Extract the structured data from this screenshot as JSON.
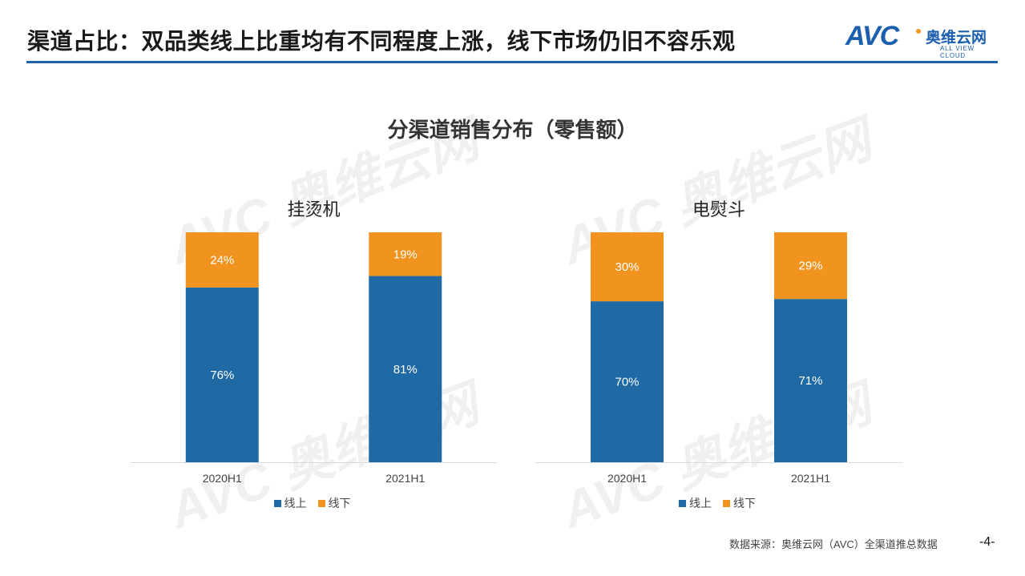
{
  "header": {
    "title": "渠道占比：双品类线上比重均有不同程度上涨，线下市场仍旧不容乐观"
  },
  "logo": {
    "mark": "AVC",
    "cn": "奥维云网",
    "en": "ALL VIEW CLOUD"
  },
  "watermark": "AVC 奥维云网 ALL VIEW CLOUD",
  "subtitle": "分渠道销售分布（零售额）",
  "colors": {
    "online": "#1f6aa5",
    "offline": "#f0941f",
    "accent": "#1f64b0"
  },
  "chart_data": [
    {
      "type": "bar",
      "stacked": true,
      "title": "挂烫机",
      "categories": [
        "2020H1",
        "2021H1"
      ],
      "series": [
        {
          "name": "线上",
          "values": [
            76,
            81
          ],
          "labels": [
            "76%",
            "81%"
          ]
        },
        {
          "name": "线下",
          "values": [
            24,
            19
          ],
          "labels": [
            "24%",
            "19%"
          ]
        }
      ],
      "ylim": [
        0,
        100
      ],
      "legend": "bottom"
    },
    {
      "type": "bar",
      "stacked": true,
      "title": "电熨斗",
      "categories": [
        "2020H1",
        "2021H1"
      ],
      "series": [
        {
          "name": "线上",
          "values": [
            70,
            71
          ],
          "labels": [
            "70%",
            "71%"
          ]
        },
        {
          "name": "线下",
          "values": [
            30,
            29
          ],
          "labels": [
            "30%",
            "29%"
          ]
        }
      ],
      "ylim": [
        0,
        100
      ],
      "legend": "bottom"
    }
  ],
  "footer": {
    "source": "数据来源：奥维云网（AVC）全渠道推总数据",
    "page": "-4-"
  }
}
